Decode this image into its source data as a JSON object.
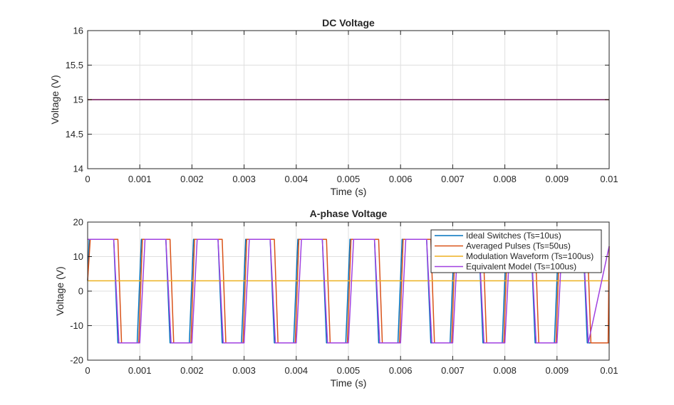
{
  "chart_data": [
    {
      "type": "line",
      "title": "DC Voltage",
      "xlabel": "Time (s)",
      "ylabel": "Voltage (V)",
      "xlim": [
        0,
        0.01
      ],
      "ylim": [
        14,
        16
      ],
      "xticks": [
        "0",
        "0.001",
        "0.002",
        "0.003",
        "0.004",
        "0.005",
        "0.006",
        "0.007",
        "0.008",
        "0.009",
        "0.01"
      ],
      "yticks": [
        "14",
        "14.5",
        "15",
        "15.5",
        "16"
      ],
      "grid": true,
      "series": [
        {
          "color": "#0072BD",
          "x": [
            0,
            0.01
          ],
          "y": [
            15,
            15
          ]
        },
        {
          "color": "#D95319",
          "x": [
            0,
            0.01
          ],
          "y": [
            15,
            15
          ]
        },
        {
          "color": "#EDB120",
          "x": [
            0,
            0.01
          ],
          "y": [
            15,
            15
          ]
        },
        {
          "color": "#7E2F8E",
          "x": [
            0,
            0.01
          ],
          "y": [
            15,
            15
          ]
        }
      ]
    },
    {
      "type": "line",
      "title": "A-phase Voltage",
      "xlabel": "Time (s)",
      "ylabel": "Voltage (V)",
      "xlim": [
        0,
        0.01
      ],
      "ylim": [
        -20,
        20
      ],
      "xticks": [
        "0",
        "0.001",
        "0.002",
        "0.003",
        "0.004",
        "0.005",
        "0.006",
        "0.007",
        "0.008",
        "0.009",
        "0.01"
      ],
      "yticks": [
        "-20",
        "-10",
        "0",
        "10",
        "20"
      ],
      "grid": true,
      "legend": "top-right",
      "series": [
        {
          "name": "Ideal Switches (Ts=10us)",
          "color": "#0072BD",
          "x": [
            0,
            3e-05,
            0.0005,
            0.00058,
            0.00095,
            0.00103,
            0.0015,
            0.00158,
            0.00195,
            0.00203,
            0.0025,
            0.00258,
            0.00295,
            0.00303,
            0.0035,
            0.00358,
            0.00395,
            0.00403,
            0.0045,
            0.00458,
            0.00495,
            0.00503,
            0.0055,
            0.00558,
            0.00595,
            0.00603,
            0.0065,
            0.00658,
            0.00695,
            0.00703,
            0.0075,
            0.00758,
            0.00795,
            0.00803,
            0.0085,
            0.00858,
            0.00895,
            0.00903,
            0.0095,
            0.00958,
            0.00995,
            0.01
          ],
          "y": [
            3,
            15,
            15,
            -15,
            -15,
            15,
            15,
            -15,
            -15,
            15,
            15,
            -15,
            -15,
            15,
            15,
            -15,
            -15,
            15,
            15,
            -15,
            -15,
            15,
            15,
            -15,
            -15,
            15,
            15,
            -15,
            -15,
            15,
            15,
            -15,
            -15,
            15,
            15,
            -15,
            -15,
            15,
            15,
            -15,
            -15,
            -15
          ]
        },
        {
          "name": "Averaged Pulses (Ts=50us)",
          "color": "#D95319",
          "x": [
            0,
            5e-05,
            0.00058,
            0.00065,
            0.00098,
            0.00105,
            0.00158,
            0.00165,
            0.00198,
            0.00205,
            0.00258,
            0.00265,
            0.00298,
            0.00305,
            0.00358,
            0.00365,
            0.00398,
            0.00405,
            0.00458,
            0.00465,
            0.00498,
            0.00505,
            0.00558,
            0.00565,
            0.00598,
            0.00605,
            0.00658,
            0.00665,
            0.00698,
            0.00705,
            0.00758,
            0.00765,
            0.00798,
            0.00805,
            0.00858,
            0.00865,
            0.00898,
            0.00905,
            0.00958,
            0.00965,
            0.00998,
            0.01
          ],
          "y": [
            3,
            15,
            15,
            -15,
            -15,
            15,
            15,
            -15,
            -15,
            15,
            15,
            -15,
            -15,
            15,
            15,
            -15,
            -15,
            15,
            15,
            -15,
            -15,
            15,
            15,
            -15,
            -15,
            15,
            15,
            -15,
            -15,
            15,
            15,
            -15,
            -15,
            15,
            15,
            -15,
            -15,
            15,
            15,
            -15,
            -15,
            13
          ]
        },
        {
          "name": "Modulation Waveform (Ts=100us)",
          "color": "#EDB120",
          "x": [
            0,
            0.01
          ],
          "y": [
            3,
            3
          ]
        },
        {
          "name": "Equivalent Model (Ts=100us)",
          "color": "#A040E0",
          "x": [
            0,
            0.0001,
            0.0005,
            0.0006,
            0.001,
            0.0011,
            0.0015,
            0.0016,
            0.002,
            0.0021,
            0.0025,
            0.0026,
            0.003,
            0.0031,
            0.0035,
            0.0036,
            0.004,
            0.0041,
            0.0045,
            0.0046,
            0.005,
            0.0051,
            0.0055,
            0.0056,
            0.006,
            0.0061,
            0.0065,
            0.0066,
            0.007,
            0.0071,
            0.0075,
            0.0076,
            0.008,
            0.0081,
            0.0085,
            0.0086,
            0.009,
            0.0091,
            0.0095,
            0.0096,
            0.01
          ],
          "y": [
            15,
            15,
            15,
            -15,
            -15,
            15,
            15,
            -15,
            -15,
            15,
            15,
            -15,
            -15,
            15,
            15,
            -15,
            -15,
            15,
            15,
            -15,
            -15,
            15,
            15,
            -15,
            -15,
            15,
            15,
            -15,
            -15,
            15,
            15,
            -15,
            -15,
            15,
            15,
            -15,
            -15,
            15,
            15,
            -15,
            13
          ]
        }
      ]
    }
  ]
}
